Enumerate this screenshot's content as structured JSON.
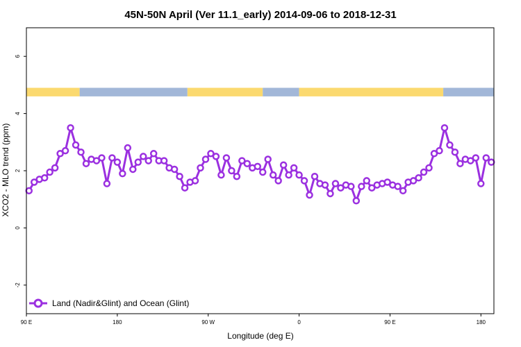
{
  "chart_data": {
    "type": "line",
    "title": "45N-50N April (Ver 11.1_early)   2014-09-06 to 2018-12-31",
    "xlabel": "Longitude (deg E)",
    "ylabel": "XCO2 - MLO trend (ppm)",
    "xlim": [
      90,
      450
    ],
    "ylim": [
      -3,
      7
    ],
    "x_ticks": [
      {
        "value": 90,
        "label": "90 E"
      },
      {
        "value": 160,
        "label": "180"
      },
      {
        "value": 230,
        "label": "90 W"
      },
      {
        "value": 300,
        "label": "0"
      },
      {
        "value": 370,
        "label": "90 E"
      },
      {
        "value": 440,
        "label": "180"
      }
    ],
    "y_ticks": [
      -2,
      0,
      2,
      4,
      6
    ],
    "grid": false,
    "legend": {
      "position": "bottom-left"
    },
    "series": [
      {
        "name": "Land (Nadir&Glint) and Ocean (Glint)",
        "color": "#9b30e0",
        "x": [
          92,
          96,
          100,
          104,
          108,
          112,
          116,
          120,
          124,
          128,
          132,
          136,
          140,
          144,
          148,
          152,
          156,
          160,
          164,
          168,
          172,
          176,
          180,
          184,
          188,
          192,
          196,
          200,
          204,
          208,
          212,
          216,
          220,
          224,
          228,
          232,
          236,
          240,
          244,
          248,
          252,
          256,
          260,
          264,
          268,
          272,
          276,
          280,
          284,
          288,
          292,
          296,
          300,
          304,
          308,
          312,
          316,
          320,
          324,
          328,
          332,
          336,
          340,
          344,
          348,
          352,
          356,
          360,
          364,
          368,
          372,
          376,
          380,
          384,
          388,
          392,
          396,
          400,
          404,
          408,
          412,
          416,
          420,
          424,
          428,
          432,
          436,
          440,
          444,
          448
        ],
        "y": [
          1.3,
          1.6,
          1.7,
          1.75,
          1.95,
          2.1,
          2.6,
          2.7,
          3.5,
          2.9,
          2.65,
          2.25,
          2.4,
          2.35,
          2.45,
          1.55,
          2.45,
          2.3,
          1.9,
          2.8,
          2.05,
          2.3,
          2.5,
          2.35,
          2.6,
          2.35,
          2.35,
          2.1,
          2.05,
          1.8,
          1.4,
          1.6,
          1.65,
          2.1,
          2.4,
          2.6,
          2.5,
          1.85,
          2.45,
          2.0,
          1.8,
          2.35,
          2.25,
          2.1,
          2.15,
          1.95,
          2.4,
          1.85,
          1.65,
          2.2,
          1.85,
          2.1,
          1.85,
          1.65,
          1.15,
          1.8,
          1.55,
          1.5,
          1.2,
          1.55,
          1.4,
          1.5,
          1.45,
          0.95,
          1.45,
          1.65,
          1.4,
          1.5,
          1.55,
          1.6,
          1.5,
          1.45,
          1.3,
          1.6,
          1.65,
          1.75,
          1.95,
          2.1,
          2.6,
          2.7,
          3.5,
          2.9,
          2.65,
          2.25,
          2.4,
          2.35,
          2.45,
          1.55,
          2.45,
          2.3
        ]
      }
    ],
    "surface_bar": {
      "y_range": [
        4.6,
        4.9
      ],
      "land_color": "#fbd96f",
      "ocean_color": "#a2b7d8",
      "segments": [
        {
          "from": 90,
          "to": 131,
          "type": "land"
        },
        {
          "from": 131,
          "to": 214,
          "type": "ocean"
        },
        {
          "from": 214,
          "to": 272,
          "type": "land"
        },
        {
          "from": 272,
          "to": 300,
          "type": "ocean"
        },
        {
          "from": 300,
          "to": 411,
          "type": "land"
        },
        {
          "from": 411,
          "to": 450,
          "type": "ocean"
        }
      ]
    }
  }
}
